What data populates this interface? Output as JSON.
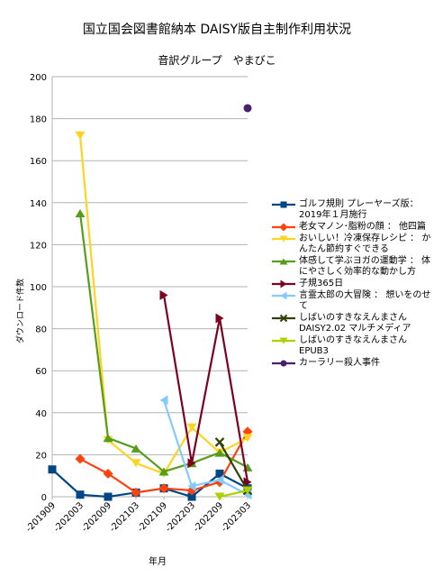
{
  "chart_data": {
    "type": "line",
    "title": "国立国会図書館納本 DAISY版自主制作利用状況",
    "subtitle": "音訳グループ　やまびこ",
    "xlabel": "年月",
    "ylabel": "ダウンロード件数",
    "ylim": [
      0,
      200
    ],
    "yticks": [
      0,
      20,
      40,
      60,
      80,
      100,
      120,
      140,
      160,
      180,
      200
    ],
    "categories": [
      "-201909",
      "-202003",
      "-202009",
      "-202103",
      "-202109",
      "-202203",
      "-202209",
      "-202303"
    ],
    "grid": true,
    "legend_position": "right",
    "series": [
      {
        "name": "ゴルフ規則 プレーヤーズ版：2019年１月施行",
        "color": "#004586",
        "marker": "square",
        "values": [
          13,
          1,
          0,
          2,
          4,
          0,
          11,
          4
        ]
      },
      {
        "name": "老女マノン･脂粉の顔 ： 他四篇",
        "color": "#ff420e",
        "marker": "diamond",
        "values": [
          null,
          18,
          11,
          2,
          4,
          3,
          7,
          31
        ]
      },
      {
        "name": "おいしい！冷凍保存レシピ ： かんたん節約すぐできる",
        "color": "#ffd320",
        "marker": "triangle-down",
        "values": [
          null,
          172,
          27,
          16,
          11,
          33,
          21,
          28
        ]
      },
      {
        "name": "体感して学ぶヨガの運動学 ： 体にやさしく効率的な動かし方",
        "color": "#579d1c",
        "marker": "triangle-up",
        "values": [
          null,
          135,
          28,
          23,
          12,
          16,
          21,
          14
        ]
      },
      {
        "name": "子規365日",
        "color": "#7e0021",
        "marker": "triangle-right",
        "values": [
          null,
          null,
          null,
          null,
          96,
          16,
          85,
          7
        ]
      },
      {
        "name": "言霊太郎の大冒険 ： 想いをのせて",
        "color": "#83caff",
        "marker": "triangle-left",
        "values": [
          null,
          null,
          null,
          null,
          46,
          5,
          8,
          1
        ]
      },
      {
        "name": "しばいのすきなえんまさん DAISY2.02 マルチメディア",
        "color": "#314004",
        "marker": "x",
        "values": [
          null,
          null,
          null,
          null,
          null,
          null,
          26,
          3
        ]
      },
      {
        "name": "しばいのすきなえんまさん EPUB3",
        "color": "#aecf00",
        "marker": "triangle-down",
        "values": [
          null,
          null,
          null,
          null,
          null,
          null,
          0,
          3
        ]
      },
      {
        "name": "カーラリー殺人事件",
        "color": "#4b1f6f",
        "marker": "circle",
        "values": [
          null,
          null,
          null,
          null,
          null,
          null,
          null,
          185
        ]
      }
    ]
  }
}
